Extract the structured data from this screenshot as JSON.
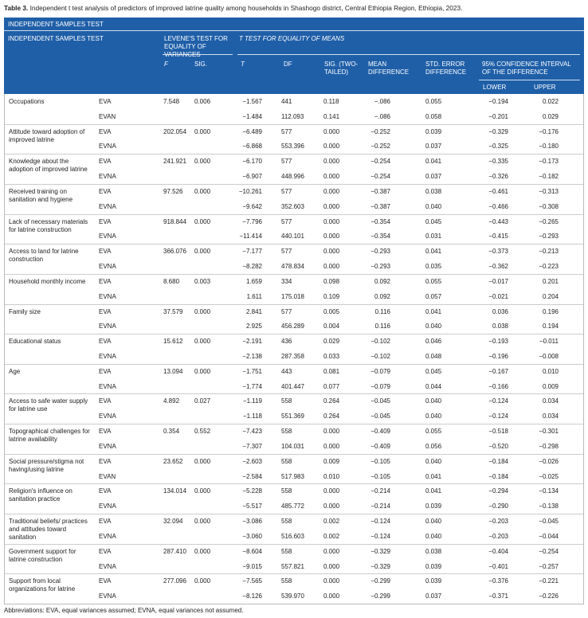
{
  "caption": {
    "label": "Table 3.",
    "text": "Independent t test analysis of predictors of improved latrine quality among households in Shashogo district, Central Ethiopia Region, Ethiopia, 2023."
  },
  "header": {
    "banner": "INDEPENDENT SAMPLES TEST",
    "row_title": "INDEPENDENT SAMPLES TEST",
    "levene": "LEVENE'S TEST FOR EQUALITY OF VARIANCES",
    "ttest": "T TEST FOR EQUALITY OF MEANS",
    "f": "F",
    "sig": "SIG.",
    "t": "T",
    "df": "DF",
    "sig2": "SIG. (TWO-TAILED)",
    "md": "MEAN DIFFERENCE",
    "se": "STD. ERROR DIFFERENCE",
    "ci": "95% CONFIDENCE INTERVAL OF THE DIFFERENCE",
    "lower": "LOWER",
    "upper": "UPPER"
  },
  "table": {
    "groups": [
      {
        "name": "Occupations",
        "f": "7.548",
        "sig": "0.006",
        "rows": [
          [
            "EVA",
            "−1.567",
            "441",
            "0.118",
            "−.086",
            "0.055",
            "−0.194",
            "0.022"
          ],
          [
            "EVAN",
            "−1.484",
            "112.093",
            "0.141",
            "−.086",
            "0.058",
            "−0.201",
            "0.029"
          ]
        ]
      },
      {
        "name": "Attitude toward adoption of improved latrine",
        "f": "202.054",
        "sig": "0.000",
        "rows": [
          [
            "EVA",
            "−6.489",
            "577",
            "0.000",
            "−0.252",
            "0.039",
            "−0.329",
            "−0.176"
          ],
          [
            "EVNA",
            "−6.868",
            "553.396",
            "0.000",
            "−0.252",
            "0.037",
            "−0.325",
            "−0.180"
          ]
        ]
      },
      {
        "name": "Knowledge about the adoption of improved latrine",
        "f": "241.921",
        "sig": "0.000",
        "rows": [
          [
            "EVA",
            "−6.170",
            "577",
            "0.000",
            "−0.254",
            "0.041",
            "−0.335",
            "−0.173"
          ],
          [
            "EVNA",
            "−6.907",
            "448.996",
            "0.000",
            "−0.254",
            "0.037",
            "−0.326",
            "−0.182"
          ]
        ]
      },
      {
        "name": "Received training on sanitation and hygiene",
        "f": "97.526",
        "sig": "0.000",
        "rows": [
          [
            "EVA",
            "−10.261",
            "577",
            "0.000",
            "−0.387",
            "0.038",
            "−0.461",
            "−0.313"
          ],
          [
            "EVNA",
            "−9.642",
            "352.603",
            "0.000",
            "−0.387",
            "0.040",
            "−0.466",
            "−0.308"
          ]
        ]
      },
      {
        "name": "Lack of necessary materials for latrine construction",
        "f": "918.844",
        "sig": "0.000",
        "rows": [
          [
            "EVA",
            "−7.796",
            "577",
            "0.000",
            "−0.354",
            "0.045",
            "−0.443",
            "−0.265"
          ],
          [
            "EVNA",
            "−11.414",
            "440.101",
            "0.000",
            "−0.354",
            "0.031",
            "−0.415",
            "−0.293"
          ]
        ]
      },
      {
        "name": "Access to land for latrine construction",
        "f": "366.076",
        "sig": "0.000",
        "rows": [
          [
            "EVA",
            "−7.177",
            "577",
            "0.000",
            "−0.293",
            "0.041",
            "−0.373",
            "−0.213"
          ],
          [
            "EVNA",
            "−8.282",
            "478.834",
            "0.000",
            "−0.293",
            "0.035",
            "−0.362",
            "−0.223"
          ]
        ]
      },
      {
        "name": "Household monthly income",
        "f": "8.680",
        "sig": "0.003",
        "rows": [
          [
            "EVA",
            "1.659",
            "334",
            "0.098",
            "0.092",
            "0.055",
            "−0.017",
            "0.201"
          ],
          [
            "EVNA",
            "1.611",
            "175.018",
            "0.109",
            "0.092",
            "0.057",
            "−0.021",
            "0.204"
          ]
        ]
      },
      {
        "name": "Family size",
        "f": "37.579",
        "sig": "0.000",
        "rows": [
          [
            "EVA",
            "2.841",
            "577",
            "0.005",
            "0.116",
            "0.041",
            "0.036",
            "0.196"
          ],
          [
            "EVNA",
            "2.925",
            "456.289",
            "0.004",
            "0.116",
            "0.040",
            "0.038",
            "0.194"
          ]
        ]
      },
      {
        "name": "Educational status",
        "f": "15.612",
        "sig": "0.000",
        "rows": [
          [
            "EVA",
            "−2.191",
            "436",
            "0.029",
            "−0.102",
            "0.046",
            "−0.193",
            "−0.011"
          ],
          [
            "EVNA",
            "−2.138",
            "287.358",
            "0.033",
            "−0.102",
            "0.048",
            "−0.196",
            "−0.008"
          ]
        ]
      },
      {
        "name": "Age",
        "f": "13.094",
        "sig": "0.000",
        "rows": [
          [
            "EVA",
            "−1.751",
            "443",
            "0.081",
            "−0.079",
            "0.045",
            "−0.167",
            "0.010"
          ],
          [
            "EVNA",
            "−1.774",
            "401.447",
            "0.077",
            "−0.079",
            "0.044",
            "−0.166",
            "0.009"
          ]
        ]
      },
      {
        "name": "Access to safe water supply for latrine use",
        "f": "4.892",
        "sig": "0.027",
        "rows": [
          [
            "EVA",
            "−1.119",
            "558",
            "0.264",
            "−0.045",
            "0.040",
            "−0.124",
            "0.034"
          ],
          [
            "EVNA",
            "−1.118",
            "551.369",
            "0.264",
            "−0.045",
            "0.040",
            "−0.124",
            "0.034"
          ]
        ]
      },
      {
        "name": "Topographical challenges for latrine availability",
        "f": "0.354",
        "sig": "0.552",
        "rows": [
          [
            "EVA",
            "−7.423",
            "558",
            "0.000",
            "−0.409",
            "0.055",
            "−0.518",
            "−0.301"
          ],
          [
            "EVNA",
            "−7.307",
            "104.031",
            "0.000",
            "−0.409",
            "0.056",
            "−0.520",
            "−0.298"
          ]
        ]
      },
      {
        "name": "Social pressure/stigma not having/using latrine",
        "f": "23.652",
        "sig": "0.000",
        "rows": [
          [
            "EVA",
            "−2.603",
            "558",
            "0.009",
            "−0.105",
            "0.040",
            "−0.184",
            "−0.026"
          ],
          [
            "EVAN",
            "−2.584",
            "517.983",
            "0.010",
            "−0.105",
            "0.041",
            "−0.184",
            "−0.025"
          ]
        ]
      },
      {
        "name": "Religion's influence on sanitation practice",
        "f": "134.014",
        "sig": "0.000",
        "rows": [
          [
            "EVA",
            "−5.228",
            "558",
            "0.000",
            "−0.214",
            "0.041",
            "−0.294",
            "−0.134"
          ],
          [
            "EVNA",
            "−5.517",
            "485.772",
            "0.000",
            "−0.214",
            "0.039",
            "−0.290",
            "−0.138"
          ]
        ]
      },
      {
        "name": "Traditional beliefs/ practices and attitudes toward sanitation",
        "f": "32.094",
        "sig": "0.000",
        "rows": [
          [
            "EVA",
            "−3.086",
            "558",
            "0.002",
            "−0.124",
            "0.040",
            "−0.203",
            "−0.045"
          ],
          [
            "EVNA",
            "−3.060",
            "516.603",
            "0.002",
            "−0.124",
            "0.040",
            "−0.203",
            "−0.044"
          ]
        ]
      },
      {
        "name": "Government support for latrine construction",
        "f": "287.410",
        "sig": "0.000",
        "rows": [
          [
            "EVA",
            "−8.604",
            "558",
            "0.000",
            "−0.329",
            "0.038",
            "−0.404",
            "−0.254"
          ],
          [
            "EVNA",
            "−9.015",
            "557.821",
            "0.000",
            "−0.329",
            "0.039",
            "−0.401",
            "−0.257"
          ]
        ]
      },
      {
        "name": "Support from local organizations for latrine",
        "f": "277.096",
        "sig": "0.000",
        "rows": [
          [
            "EVA",
            "−7.565",
            "558",
            "0.000",
            "−0.299",
            "0.039",
            "−0.376",
            "−0.221"
          ],
          [
            "EVNA",
            "−8.126",
            "539.970",
            "0.000",
            "−0.299",
            "0.037",
            "−0.371",
            "−0.226"
          ]
        ]
      }
    ]
  },
  "footnote": "Abbreviations: EVA, equal variances assumed; EVNA, equal variances not assumed."
}
